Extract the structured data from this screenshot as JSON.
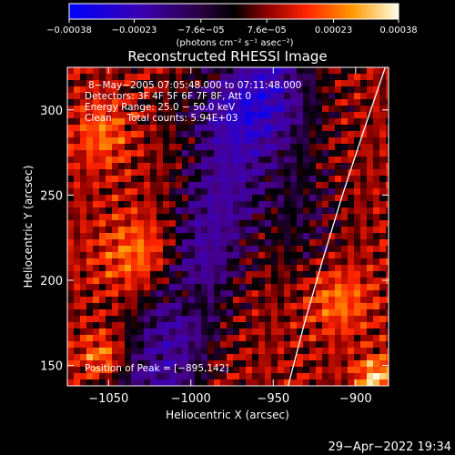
{
  "chart_data": {
    "type": "heatmap",
    "title": "Reconstructed RHESSI Image",
    "xlabel": "Heliocentric X (arcsec)",
    "ylabel": "Heliocentric Y (arcsec)",
    "xlim": [
      -1075,
      -880
    ],
    "ylim": [
      138,
      325
    ],
    "x_ticks": [
      {
        "value": -1050,
        "label": "−1050"
      },
      {
        "value": -1000,
        "label": "−1000"
      },
      {
        "value": -950,
        "label": "−950"
      },
      {
        "value": -900,
        "label": "−900"
      }
    ],
    "y_ticks": [
      {
        "value": 150,
        "label": "150"
      },
      {
        "value": 200,
        "label": "200"
      },
      {
        "value": 250,
        "label": "250"
      },
      {
        "value": 300,
        "label": "300"
      }
    ],
    "colorbar": {
      "range": [
        -0.00038,
        0.00038
      ],
      "ticks": [
        {
          "value": -0.00038,
          "label": "−0.00038"
        },
        {
          "value": -0.00023,
          "label": "−0.00023"
        },
        {
          "value": -7.6e-05,
          "label": "−7.6e−05"
        },
        {
          "value": 7.6e-05,
          "label": "7.6e−05"
        },
        {
          "value": 0.00023,
          "label": "0.00023"
        },
        {
          "value": 0.00038,
          "label": "0.00038"
        }
      ],
      "unit_label": "(photons cm⁻² s⁻¹ asec⁻²)"
    },
    "annotations": {
      "time_range": "8−May−2005 07:05:48.000 to 07:11:48.000",
      "detectors": "Detectors: 3F 4F 5F 6F 7F 8F, Att 0",
      "energy_range": "Energy Range: 25.0 − 50.0 keV",
      "method_counts": "Clean     Total counts: 5.94E+03",
      "peak": "Position of Peak = [−895,142]"
    },
    "limb_curve": {
      "points": [
        [
          -941,
          138
        ],
        [
          -931,
          175
        ],
        [
          -920,
          212
        ],
        [
          -908,
          250
        ],
        [
          -895,
          288
        ],
        [
          -882,
          325
        ]
      ]
    },
    "peak_position": [
      -895,
      142
    ],
    "colormap": [
      "#0000ff",
      "#2d0071",
      "#000000",
      "#8c0000",
      "#ff2000",
      "#ff9600",
      "#ffffe6"
    ]
  },
  "footer": {
    "timestamp": "29−Apr−2022 19:34"
  }
}
